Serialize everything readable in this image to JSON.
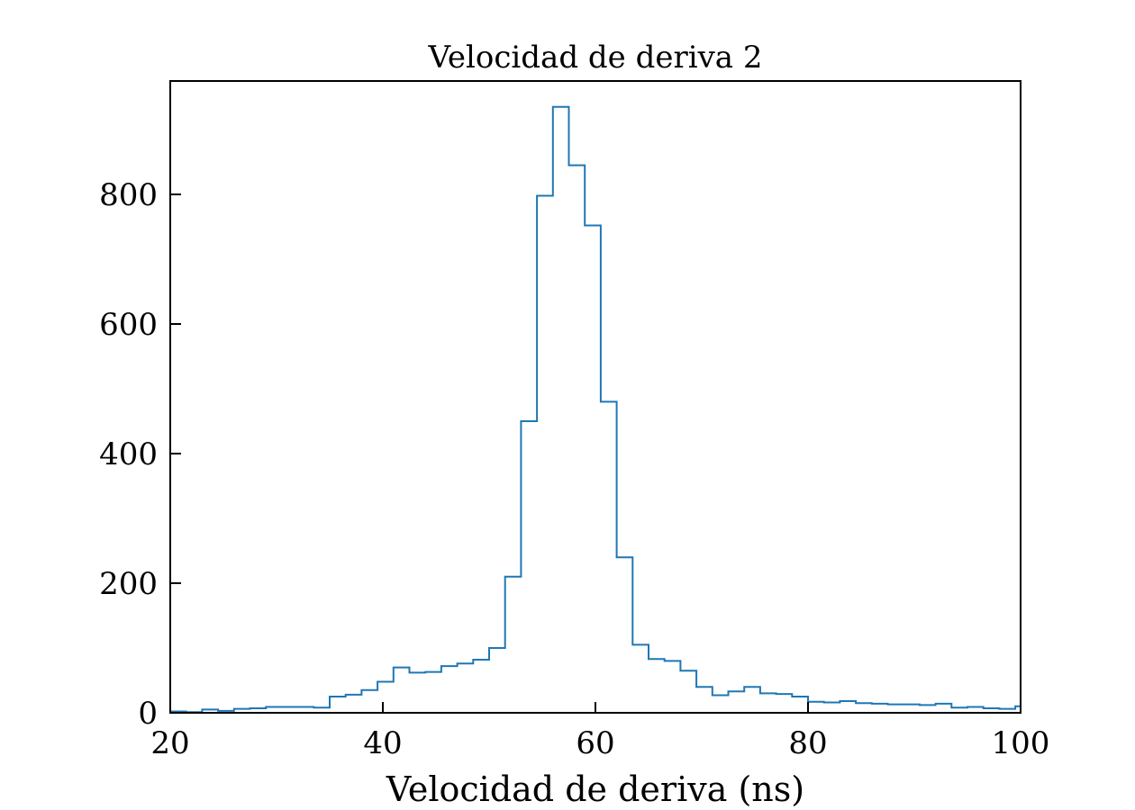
{
  "chart_data": {
    "type": "histogram",
    "title": "Velocidad de deriva 2",
    "xlabel": "Velocidad de deriva (ns)",
    "ylabel": "",
    "xlim": [
      20,
      100
    ],
    "ylim": [
      0,
      975
    ],
    "xticks": [
      20,
      40,
      60,
      80,
      100
    ],
    "yticks": [
      0,
      200,
      400,
      600,
      800
    ],
    "grid": false,
    "legend": "none",
    "line_color": "#1f77b4",
    "bin_edges": [
      20,
      21.5,
      23,
      24.5,
      26,
      27.5,
      29,
      30.5,
      32,
      33.5,
      35,
      36.5,
      38,
      39.5,
      41,
      42.5,
      44,
      45.5,
      47,
      48.5,
      50,
      51.5,
      53,
      54.5,
      56,
      57.5,
      59,
      60.5,
      62,
      63.5,
      65,
      66.5,
      68,
      69.5,
      71,
      72.5,
      74,
      75.5,
      77,
      78.5,
      80,
      81.5,
      83,
      84.5,
      86,
      87.5,
      89,
      90.5,
      92,
      93.5,
      95,
      96.5,
      98,
      99.5,
      100
    ],
    "counts": [
      2,
      1,
      5,
      3,
      6,
      7,
      9,
      9,
      9,
      8,
      25,
      28,
      35,
      48,
      70,
      62,
      63,
      72,
      76,
      82,
      100,
      210,
      450,
      798,
      935,
      845,
      752,
      480,
      240,
      105,
      83,
      80,
      65,
      40,
      27,
      33,
      40,
      30,
      29,
      25,
      17,
      16,
      18,
      15,
      14,
      13,
      13,
      12,
      14,
      8,
      9,
      7,
      6,
      10
    ]
  }
}
